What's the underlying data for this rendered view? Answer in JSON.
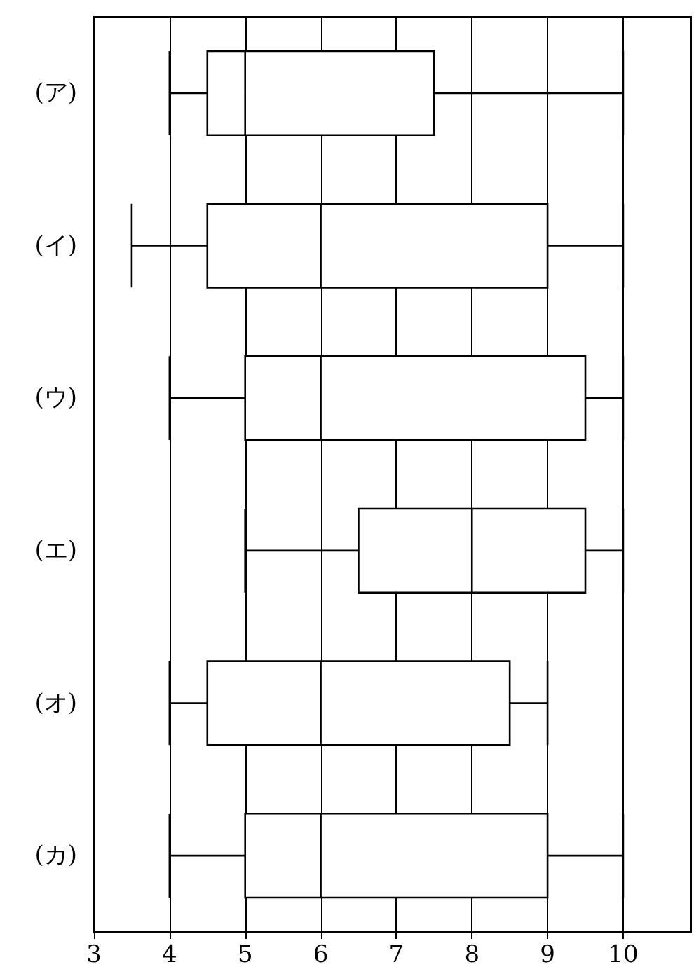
{
  "chart_data": {
    "type": "box",
    "orientation": "horizontal",
    "categories": [
      "(ア)",
      "(イ)",
      "(ウ)",
      "(エ)",
      "(オ)",
      "(カ)"
    ],
    "color": "#000000",
    "boxes": [
      {
        "low": 4,
        "q1": 4.5,
        "median": 5,
        "q3": 7.5,
        "high": 10
      },
      {
        "low": 3.5,
        "q1": 4.5,
        "median": 6,
        "q3": 9,
        "high": 10
      },
      {
        "low": 4,
        "q1": 5,
        "median": 6,
        "q3": 9.5,
        "high": 10
      },
      {
        "low": 5,
        "q1": 6.5,
        "median": 8,
        "q3": 9.5,
        "high": 10
      },
      {
        "low": 4,
        "q1": 4.5,
        "median": 6,
        "q3": 8.5,
        "high": 9
      },
      {
        "low": 4,
        "q1": 5,
        "median": 6,
        "q3": 9,
        "high": 10
      }
    ],
    "xlim": [
      3,
      10.9
    ],
    "xticks": [
      3,
      4,
      5,
      6,
      7,
      8,
      9,
      10
    ],
    "grid": "x"
  }
}
